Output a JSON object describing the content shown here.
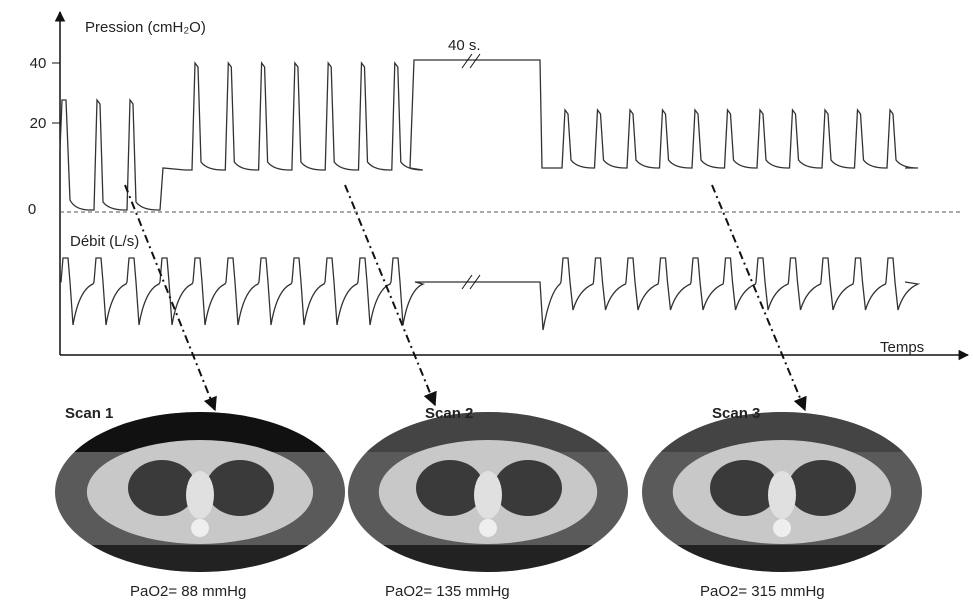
{
  "pressure_label": "Pression (cmH₂O)",
  "pressure_ticks": [
    40,
    20,
    0
  ],
  "pause_label": "40 s.",
  "flow_label": "Débit (L/s)",
  "time_label": "Temps",
  "scans": [
    {
      "title": "Scan 1",
      "pao2": "PaO2= 88 mmHg"
    },
    {
      "title": "Scan 2",
      "pao2": "PaO2= 135 mmHg"
    },
    {
      "title": "Scan 3",
      "pao2": "PaO2= 315 mmHg"
    }
  ]
}
